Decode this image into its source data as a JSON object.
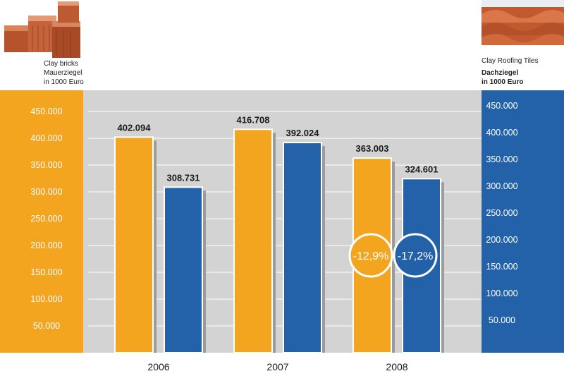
{
  "header": {
    "left_en": "Clay bricks",
    "left_de": "Mauerziegel",
    "left_unit": "in 1000 Euro",
    "right_en": "Clay Roofing Tiles",
    "right_de": "Dachziegel",
    "right_unit": "in 1000 Euro"
  },
  "colors": {
    "clay_bricks": "#f4a51f",
    "roofing_tiles": "#2361a8",
    "plot_background": "#d3d3d4",
    "axis_text": "#ffffff"
  },
  "chart_data": {
    "type": "bar",
    "categories": [
      "2006",
      "2007",
      "2008"
    ],
    "series": [
      {
        "name": "Clay bricks",
        "values": [
          402094,
          416708,
          363003
        ],
        "labels": [
          "402.094",
          "416.708",
          "363.003"
        ]
      },
      {
        "name": "Clay Roofing Tiles",
        "values": [
          308731,
          392024,
          324601
        ],
        "labels": [
          "308.731",
          "392.024",
          "324.601"
        ]
      }
    ],
    "yticks": [
      {
        "value": 50000,
        "label": "50.000"
      },
      {
        "value": 100000,
        "label": "100.000"
      },
      {
        "value": 150000,
        "label": "150.000"
      },
      {
        "value": 200000,
        "label": "200.000"
      },
      {
        "value": 250000,
        "label": "250.000"
      },
      {
        "value": 300000,
        "label": "300.000"
      },
      {
        "value": 350000,
        "label": "350.000"
      },
      {
        "value": 400000,
        "label": "400.000"
      },
      {
        "value": 450000,
        "label": "450.000"
      }
    ],
    "ylim": [
      0,
      500000
    ],
    "grid": true,
    "annotations": [
      {
        "series": 0,
        "category": "2008",
        "text": "-12,9%"
      },
      {
        "series": 1,
        "category": "2008",
        "text": "-17,2%"
      }
    ]
  }
}
